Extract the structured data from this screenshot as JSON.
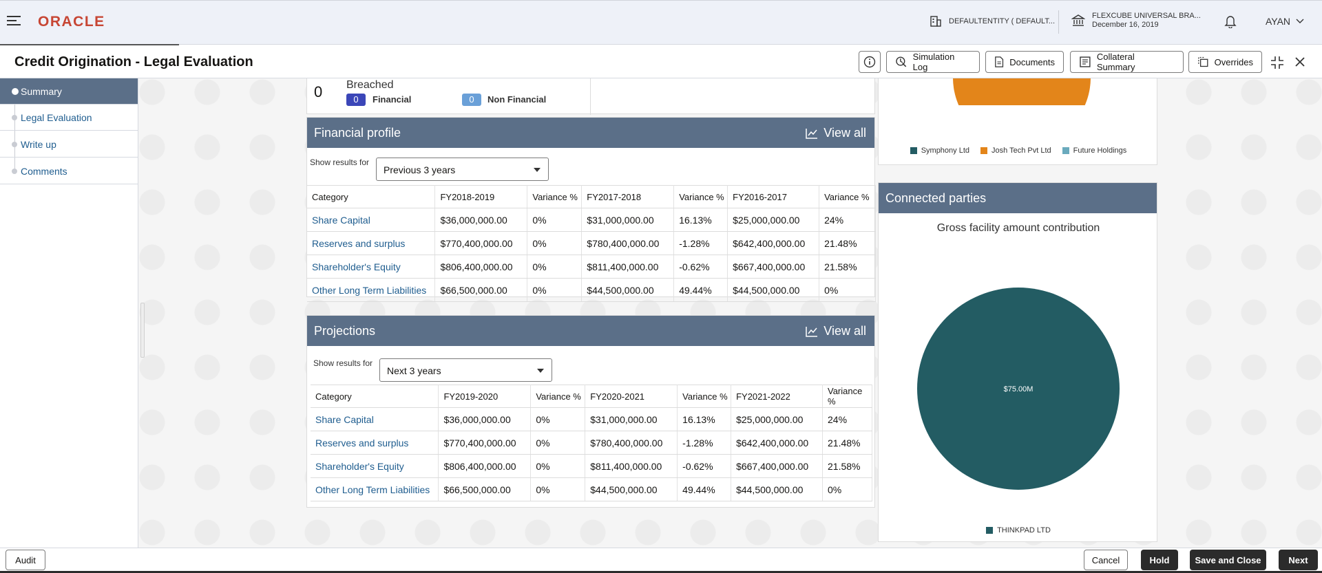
{
  "header": {
    "logo_text": "ORACLE",
    "entity": "DEFAULTENTITY ( DEFAULT...",
    "branch_line1": "FLEXCUBE UNIVERSAL BRA...",
    "branch_line2": "December 16, 2019",
    "user": "AYAN",
    "brand_color": "#c74634"
  },
  "title_bar": {
    "page_title": "Credit Origination - Legal Evaluation",
    "simulation_log": "Simulation Log",
    "documents": "Documents",
    "collateral_summary": "Collateral Summary",
    "overrides": "Overrides"
  },
  "nav": {
    "items": [
      {
        "label": "Summary",
        "active": true
      },
      {
        "label": "Legal Evaluation",
        "active": false
      },
      {
        "label": "Write up",
        "active": false
      },
      {
        "label": "Comments",
        "active": false
      }
    ],
    "active_color": "#5b6f88"
  },
  "breach": {
    "count": "0",
    "label": "Breached",
    "financial_count": "0",
    "financial_label": "Financial",
    "non_financial_count": "0",
    "non_financial_label": "Non Financial"
  },
  "financial_profile": {
    "title": "Financial profile",
    "view_all": "View all",
    "show_results_label": "Show results for",
    "selected_period": "Previous 3 years",
    "columns": [
      "Category",
      "FY2018-2019",
      "Variance %",
      "FY2017-2018",
      "Variance %",
      "FY2016-2017",
      "Variance %"
    ],
    "rows": [
      [
        "Share Capital",
        "$36,000,000.00",
        "0%",
        "$31,000,000.00",
        "16.13%",
        "$25,000,000.00",
        "24%"
      ],
      [
        "Reserves and surplus",
        "$770,400,000.00",
        "0%",
        "$780,400,000.00",
        "-1.28%",
        "$642,400,000.00",
        "21.48%"
      ],
      [
        "Shareholder's Equity",
        "$806,400,000.00",
        "0%",
        "$811,400,000.00",
        "-0.62%",
        "$667,400,000.00",
        "21.58%"
      ],
      [
        "Other Long Term Liabilities",
        "$66,500,000.00",
        "0%",
        "$44,500,000.00",
        "49.44%",
        "$44,500,000.00",
        "0%"
      ]
    ]
  },
  "projections": {
    "title": "Projections",
    "view_all": "View all",
    "show_results_label": "Show results for",
    "selected_period": "Next 3 years",
    "columns": [
      "Category",
      "FY2019-2020",
      "Variance %",
      "FY2020-2021",
      "Variance %",
      "FY2021-2022",
      "Variance %"
    ],
    "rows": [
      [
        "Share Capital",
        "$36,000,000.00",
        "0%",
        "$31,000,000.00",
        "16.13%",
        "$25,000,000.00",
        "24%"
      ],
      [
        "Reserves and surplus",
        "$770,400,000.00",
        "0%",
        "$780,400,000.00",
        "-1.28%",
        "$642,400,000.00",
        "21.48%"
      ],
      [
        "Shareholder's Equity",
        "$806,400,000.00",
        "0%",
        "$811,400,000.00",
        "-0.62%",
        "$667,400,000.00",
        "21.58%"
      ],
      [
        "Other Long Term Liabilities",
        "$66,500,000.00",
        "0%",
        "$44,500,000.00",
        "49.44%",
        "$44,500,000.00",
        "0%"
      ]
    ]
  },
  "top_pie": {
    "legend": [
      {
        "name": "Symphony Ltd",
        "color": "#235c63"
      },
      {
        "name": "Josh Tech Pvt Ltd",
        "color": "#e3851a"
      },
      {
        "name": "Future Holdings",
        "color": "#6aaabd"
      }
    ]
  },
  "connected_parties": {
    "title": "Connected parties",
    "subtitle": "Gross facility amount contribution",
    "chart_data": {
      "type": "pie",
      "categories": [
        "THINKPAD LTD"
      ],
      "values": [
        75.0
      ],
      "data_labels": [
        "$75.00M"
      ],
      "colors": [
        "#235c63"
      ],
      "legend_position": "bottom"
    }
  },
  "footer": {
    "audit": "Audit",
    "cancel": "Cancel",
    "hold": "Hold",
    "save_and_close": "Save and Close",
    "next": "Next"
  }
}
